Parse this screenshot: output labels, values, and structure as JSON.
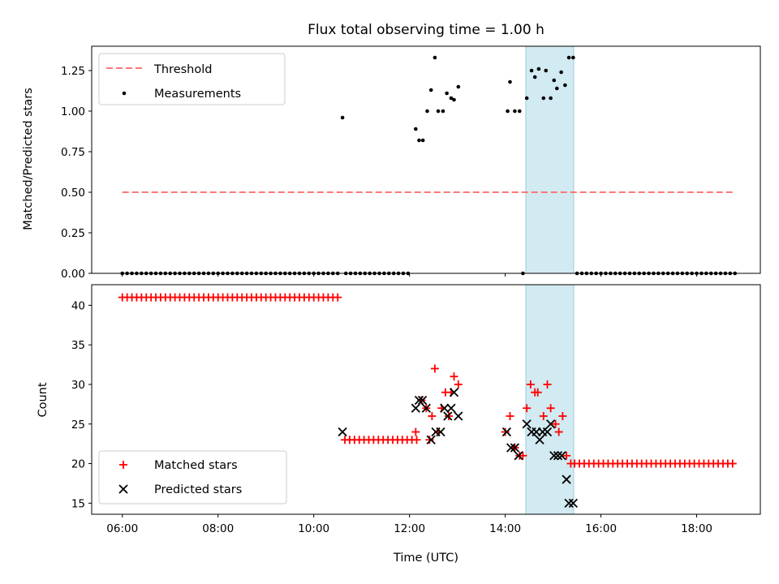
{
  "chart_data": [
    {
      "type": "scatter",
      "title": "Flux total observing time = 1.00 h",
      "xlabel": "",
      "ylabel": "Matched/Predicted stars",
      "ylim": [
        0,
        1.4
      ],
      "yticks": [
        0.0,
        0.25,
        0.5,
        0.75,
        1.0,
        1.25
      ],
      "yticklabels": [
        "0.00",
        "0.25",
        "0.50",
        "0.75",
        "1.00",
        "1.25"
      ],
      "xlim_hours": [
        5.36,
        19.33
      ],
      "highlight_span_hours": [
        14.43,
        15.43
      ],
      "highlight_color": "#add8e6",
      "legend_placement": "upper left",
      "threshold": {
        "name": "Threshold",
        "value": 0.5,
        "x_hours": [
          6.0,
          18.8
        ],
        "color": "#ff6666",
        "style": "dashed"
      },
      "measurements": {
        "name": "Measurements",
        "color": "#000000",
        "zero_runs": [
          [
            6.0,
            10.5,
            0.1
          ],
          [
            10.67,
            12.0,
            0.1
          ],
          [
            14.37,
            14.37,
            0.1
          ],
          [
            15.5,
            18.8,
            0.1
          ]
        ],
        "points": [
          [
            10.6,
            0.96
          ],
          [
            12.13,
            0.89
          ],
          [
            12.2,
            0.82
          ],
          [
            12.28,
            0.82
          ],
          [
            12.37,
            1.0
          ],
          [
            12.45,
            1.13
          ],
          [
            12.53,
            1.33
          ],
          [
            12.6,
            1.0
          ],
          [
            12.7,
            1.0
          ],
          [
            12.78,
            1.11
          ],
          [
            12.87,
            1.08
          ],
          [
            12.93,
            1.07
          ],
          [
            13.02,
            1.15
          ],
          [
            14.05,
            1.0
          ],
          [
            14.1,
            1.18
          ],
          [
            14.2,
            1.0
          ],
          [
            14.3,
            1.0
          ],
          [
            14.45,
            1.08
          ],
          [
            14.55,
            1.25
          ],
          [
            14.62,
            1.21
          ],
          [
            14.7,
            1.26
          ],
          [
            14.8,
            1.08
          ],
          [
            14.85,
            1.25
          ],
          [
            14.95,
            1.08
          ],
          [
            15.02,
            1.19
          ],
          [
            15.08,
            1.14
          ],
          [
            15.17,
            1.24
          ],
          [
            15.25,
            1.16
          ],
          [
            15.33,
            1.33
          ],
          [
            15.42,
            1.33
          ]
        ]
      }
    },
    {
      "type": "scatter",
      "xlabel": "Time (UTC)",
      "ylabel": "Count",
      "ylim": [
        13.6,
        42.6
      ],
      "yticks": [
        15,
        20,
        25,
        30,
        35,
        40
      ],
      "yticklabels": [
        "15",
        "20",
        "25",
        "30",
        "35",
        "40"
      ],
      "xlim_hours": [
        5.36,
        19.33
      ],
      "xticks_hours": [
        6,
        8,
        10,
        12,
        14,
        16,
        18
      ],
      "xticklabels": [
        "06:00",
        "08:00",
        "10:00",
        "12:00",
        "14:00",
        "16:00",
        "18:00"
      ],
      "highlight_span_hours": [
        14.43,
        15.43
      ],
      "highlight_color": "#add8e6",
      "legend_placement": "lower left",
      "series": [
        {
          "name": "Matched stars",
          "marker": "+",
          "color": "#ff0000",
          "runs": [
            [
              6.0,
              10.55,
              0.1,
              41
            ],
            [
              10.65,
              12.2,
              0.1,
              23
            ],
            [
              15.45,
              18.8,
              0.1,
              20
            ]
          ],
          "points": [
            [
              12.13,
              24
            ],
            [
              12.25,
              28
            ],
            [
              12.35,
              27
            ],
            [
              12.42,
              23
            ],
            [
              12.47,
              26
            ],
            [
              12.53,
              32
            ],
            [
              12.6,
              24
            ],
            [
              12.67,
              27
            ],
            [
              12.75,
              29
            ],
            [
              12.82,
              26
            ],
            [
              12.87,
              29
            ],
            [
              12.93,
              31
            ],
            [
              13.02,
              30
            ],
            [
              14.0,
              24
            ],
            [
              14.1,
              26
            ],
            [
              14.2,
              22
            ],
            [
              14.3,
              21
            ],
            [
              14.37,
              21
            ],
            [
              14.45,
              27
            ],
            [
              14.53,
              30
            ],
            [
              14.62,
              29
            ],
            [
              14.68,
              29
            ],
            [
              14.8,
              26
            ],
            [
              14.88,
              30
            ],
            [
              14.95,
              27
            ],
            [
              15.05,
              25
            ],
            [
              15.12,
              24
            ],
            [
              15.2,
              26
            ],
            [
              15.28,
              21
            ],
            [
              15.37,
              20
            ]
          ]
        },
        {
          "name": "Predicted stars",
          "marker": "x",
          "color": "#000000",
          "points": [
            [
              10.6,
              24
            ],
            [
              12.13,
              27
            ],
            [
              12.2,
              28
            ],
            [
              12.27,
              28
            ],
            [
              12.35,
              27
            ],
            [
              12.45,
              23
            ],
            [
              12.55,
              24
            ],
            [
              12.65,
              24
            ],
            [
              12.73,
              27
            ],
            [
              12.8,
              26
            ],
            [
              12.87,
              27
            ],
            [
              12.93,
              29
            ],
            [
              13.02,
              26
            ],
            [
              14.03,
              24
            ],
            [
              14.12,
              22
            ],
            [
              14.2,
              22
            ],
            [
              14.28,
              21
            ],
            [
              14.45,
              25
            ],
            [
              14.55,
              24
            ],
            [
              14.65,
              24
            ],
            [
              14.72,
              23
            ],
            [
              14.78,
              24
            ],
            [
              14.88,
              24
            ],
            [
              14.95,
              25
            ],
            [
              15.02,
              21
            ],
            [
              15.1,
              21
            ],
            [
              15.18,
              21
            ],
            [
              15.28,
              18
            ],
            [
              15.33,
              15
            ],
            [
              15.42,
              15
            ]
          ]
        }
      ]
    }
  ]
}
